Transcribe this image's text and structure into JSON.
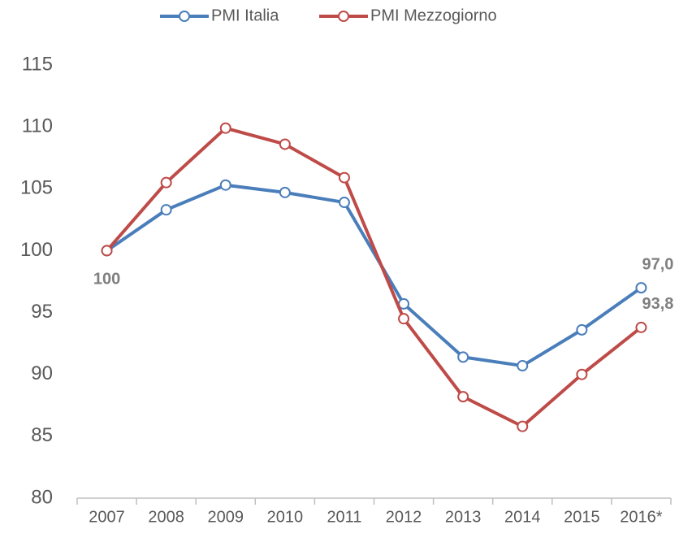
{
  "chart_data": {
    "type": "line",
    "categories": [
      "2007",
      "2008",
      "2009",
      "2010",
      "2011",
      "2012",
      "2013",
      "2014",
      "2015",
      "2016*"
    ],
    "series": [
      {
        "name": "PMI Italia",
        "color": "#4a7ebb",
        "values": [
          100,
          103.3,
          105.3,
          104.7,
          103.9,
          95.7,
          91.4,
          90.7,
          93.6,
          97.0
        ],
        "value_labels": [
          "100",
          null,
          null,
          null,
          null,
          null,
          null,
          null,
          null,
          "97,0"
        ]
      },
      {
        "name": "PMI Mezzogiorno",
        "color": "#be4b48",
        "values": [
          100,
          105.5,
          109.9,
          108.6,
          105.9,
          94.5,
          88.2,
          85.8,
          90.0,
          93.8
        ],
        "value_labels": [
          null,
          null,
          null,
          null,
          null,
          null,
          null,
          null,
          null,
          "93,8"
        ]
      }
    ],
    "ylim": [
      80,
      115
    ],
    "yticks": [
      80,
      85,
      90,
      95,
      100,
      105,
      110,
      115
    ],
    "grid": false,
    "legend": "top"
  }
}
